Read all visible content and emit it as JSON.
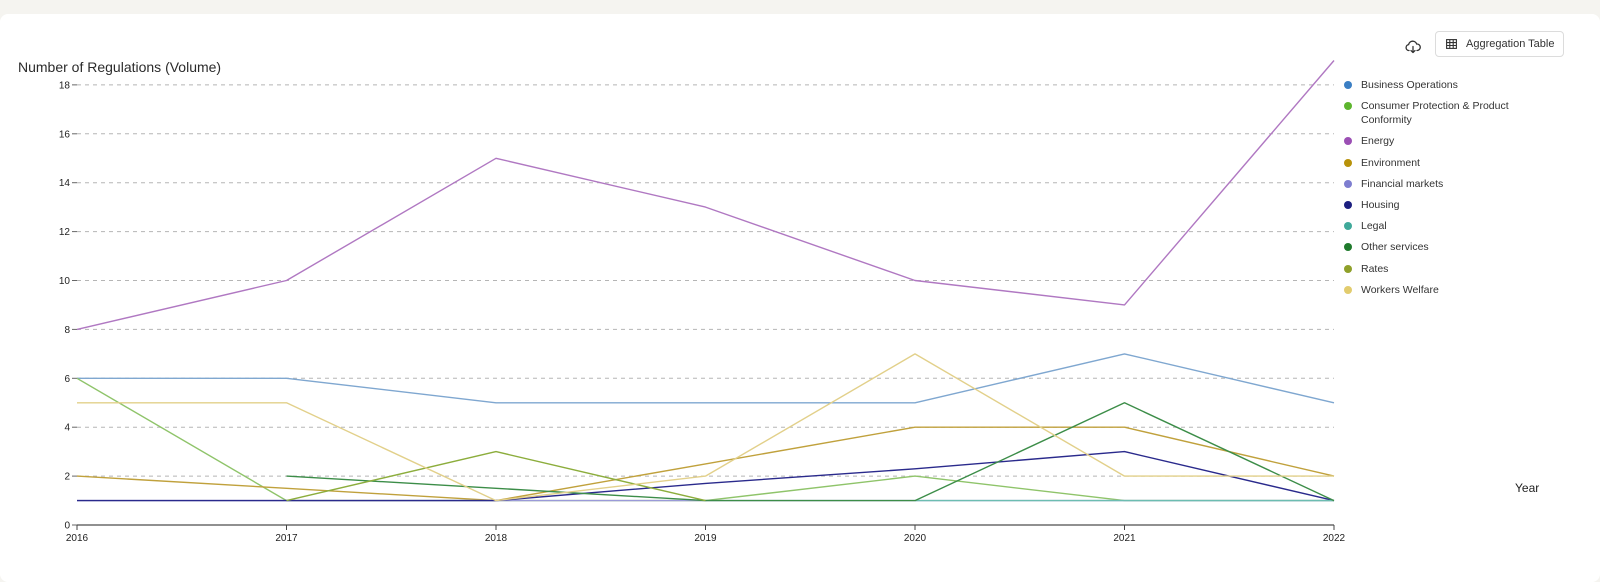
{
  "toolbar": {
    "download_icon": "cloud-download-icon",
    "table_icon": "table-grid-icon",
    "aggregation_label": "Aggregation Table"
  },
  "chart_data": {
    "type": "line",
    "title": "Number of Regulations (Volume)",
    "xlabel": "Year",
    "ylabel": "",
    "x": [
      2016,
      2017,
      2018,
      2019,
      2020,
      2021,
      2022
    ],
    "x_tick_labels": [
      "2016",
      "2017",
      "2018",
      "2019",
      "2020",
      "2021",
      "2022"
    ],
    "ylim": [
      0,
      20
    ],
    "y_ticks": [
      0,
      2,
      4,
      6,
      8,
      10,
      12,
      14,
      16,
      18
    ],
    "grid": "horizontal-dashed",
    "legend_position": "right",
    "series": [
      {
        "name": "Business Operations",
        "color": "#3b7fc4",
        "line_color": "#7fa7d0",
        "values": [
          6,
          6,
          5,
          5,
          5,
          7,
          5
        ]
      },
      {
        "name": "Consumer Protection & Product Conformity",
        "color": "#5db52e",
        "line_color": "#8fc46a",
        "values": [
          6,
          1,
          1,
          1,
          2,
          1,
          1
        ]
      },
      {
        "name": "Energy",
        "color": "#9b4fb4",
        "line_color": "#b078c2",
        "values": [
          8,
          10,
          15,
          13,
          10,
          9,
          19
        ]
      },
      {
        "name": "Environment",
        "color": "#b8920a",
        "line_color": "#c0a13c",
        "values": [
          2,
          1.5,
          1,
          2.5,
          4,
          4,
          2
        ]
      },
      {
        "name": "Financial markets",
        "color": "#7e7ed0",
        "line_color": "#9a9ad8",
        "values": [
          1,
          1,
          1,
          1,
          1,
          1,
          1
        ]
      },
      {
        "name": "Housing",
        "color": "#1c1f80",
        "line_color": "#2a2a8c",
        "values": [
          1,
          1,
          1,
          1.7,
          2.3,
          3,
          1
        ]
      },
      {
        "name": "Legal",
        "color": "#3fa99a",
        "line_color": "#6cbdb1",
        "values": [
          null,
          null,
          null,
          null,
          1,
          1,
          1
        ]
      },
      {
        "name": "Other services",
        "color": "#1f7a2c",
        "line_color": "#3c8d48",
        "values": [
          null,
          2,
          1.5,
          1,
          1,
          5,
          1
        ]
      },
      {
        "name": "Rates",
        "color": "#8fa02a",
        "line_color": "#8cad3c",
        "values": [
          null,
          1,
          3,
          1,
          null,
          null,
          null
        ]
      },
      {
        "name": "Workers Welfare",
        "color": "#e2cc6e",
        "line_color": "#e2d08a",
        "values": [
          5,
          5,
          1,
          2,
          7,
          2,
          2
        ]
      }
    ]
  }
}
